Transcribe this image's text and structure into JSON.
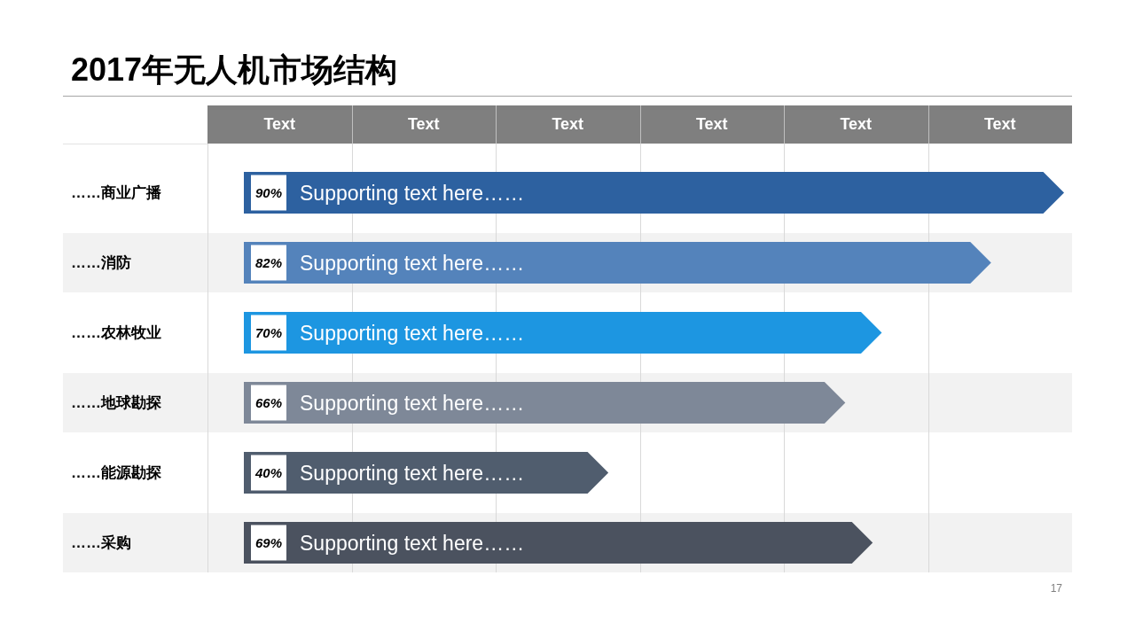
{
  "chart_data": [
    {
      "type": "bar",
      "orientation": "horizontal",
      "title": "2017年无人机市场结构",
      "categories": [
        "……商业广播",
        "……消防",
        "……农林牧业",
        "……地球勘探",
        "……能源勘探",
        "……采购"
      ],
      "values": [
        90,
        82,
        70,
        66,
        40,
        69
      ],
      "colors": [
        "#2d61a0",
        "#5483bb",
        "#1d96e1",
        "#7e8898",
        "#505d6e",
        "#4b525f"
      ],
      "value_labels": [
        "90%",
        "82%",
        "70%",
        "66%",
        "40%",
        "69%"
      ],
      "annotations": [
        "Supporting text here……",
        "Supporting text here……",
        "Supporting text here……",
        "Supporting text here……",
        "Supporting text here……",
        "Supporting text here……",
        "17"
      ]
    },
    {
      "type": "other",
      "annotations": [
        "Text",
        "Text",
        "Text",
        "Text",
        "Text",
        "Text"
      ]
    }
  ]
}
